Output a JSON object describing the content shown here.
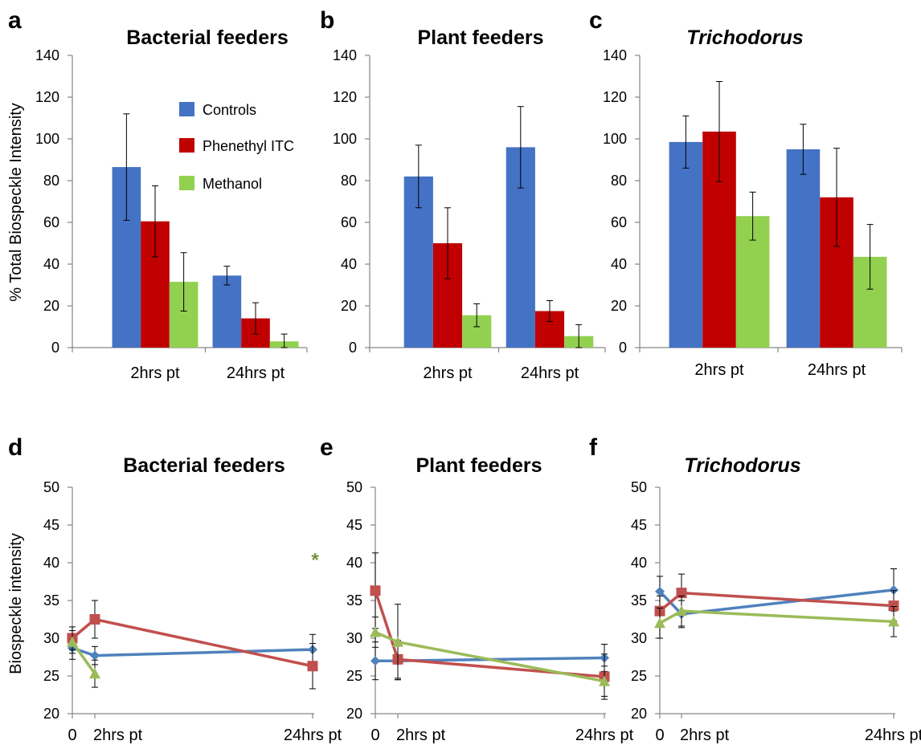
{
  "colors": {
    "controls": "#4472C4",
    "phenethyl": "#C00000",
    "methanol": "#92D050",
    "line_controls": "#4F81BD",
    "line_phenethyl": "#C0504D",
    "line_methanol": "#9BBB59",
    "asterisk": "#77933C"
  },
  "legend": [
    "Controls",
    "Phenethyl ITC",
    "Methanol"
  ],
  "y_title_top": "% Total Biospeckle Intensity",
  "y_title_bottom": "Biospeckle intensity",
  "chart_data": [
    {
      "panel": "a",
      "type": "bar",
      "title": "Bacterial feeders",
      "title_italic": false,
      "categories": [
        "2hrs pt",
        "24hrs pt"
      ],
      "ylim": [
        0,
        140
      ],
      "yticks": [
        0,
        20,
        40,
        60,
        80,
        100,
        120,
        140
      ],
      "series": [
        {
          "name": "Controls",
          "values": [
            86.5,
            34.5
          ],
          "errors": [
            25.5,
            4.5
          ]
        },
        {
          "name": "Phenethyl ITC",
          "values": [
            60.5,
            14
          ],
          "errors": [
            17,
            7.5
          ]
        },
        {
          "name": "Methanol",
          "values": [
            31.5,
            3
          ],
          "errors": [
            14,
            3.5
          ]
        }
      ]
    },
    {
      "panel": "b",
      "type": "bar",
      "title": "Plant feeders",
      "title_italic": false,
      "categories": [
        "2hrs pt",
        "24hrs pt"
      ],
      "ylim": [
        0,
        140
      ],
      "yticks": [
        0,
        20,
        40,
        60,
        80,
        100,
        120,
        140
      ],
      "series": [
        {
          "name": "Controls",
          "values": [
            82,
            96
          ],
          "errors": [
            15,
            19.5
          ]
        },
        {
          "name": "Phenethyl ITC",
          "values": [
            50,
            17.5
          ],
          "errors": [
            17,
            5
          ]
        },
        {
          "name": "Methanol",
          "values": [
            15.5,
            5.5
          ],
          "errors": [
            5.5,
            5.5
          ]
        }
      ]
    },
    {
      "panel": "c",
      "type": "bar",
      "title": "Trichodorus",
      "title_italic": true,
      "categories": [
        "2hrs pt",
        "24hrs pt"
      ],
      "ylim": [
        0,
        140
      ],
      "yticks": [
        0,
        20,
        40,
        60,
        80,
        100,
        120,
        140
      ],
      "series": [
        {
          "name": "Controls",
          "values": [
            98.5,
            95
          ],
          "errors": [
            12.5,
            12
          ]
        },
        {
          "name": "Phenethyl ITC",
          "values": [
            103.5,
            72
          ],
          "errors": [
            24,
            23.5
          ]
        },
        {
          "name": "Methanol",
          "values": [
            63,
            43.5
          ],
          "errors": [
            11.5,
            15.5
          ]
        }
      ]
    },
    {
      "panel": "d",
      "type": "line",
      "title": "Bacterial feeders",
      "title_italic": false,
      "x_tick_labels": [
        "0",
        "2hrs pt",
        "24hrs pt"
      ],
      "x": [
        0,
        2,
        24
      ],
      "xlim": [
        0,
        24
      ],
      "ylim": [
        20,
        50
      ],
      "yticks": [
        20,
        25,
        30,
        35,
        40,
        45,
        50
      ],
      "annotation": "*",
      "annotation_y": 41,
      "series": [
        {
          "name": "Controls",
          "marker": "diamond",
          "x": [
            0,
            2,
            24
          ],
          "values": [
            28.7,
            27.7,
            28.5
          ],
          "errors": [
            1.5,
            1.2,
            2
          ]
        },
        {
          "name": "Phenethyl ITC",
          "marker": "square",
          "x": [
            0,
            2,
            24
          ],
          "values": [
            30,
            32.5,
            26.3
          ],
          "errors": [
            1.5,
            2.5,
            3
          ]
        },
        {
          "name": "Methanol",
          "marker": "triangle",
          "x": [
            0,
            2
          ],
          "values": [
            29.5,
            25.3
          ],
          "errors": [
            1.5,
            1.8
          ]
        }
      ]
    },
    {
      "panel": "e",
      "type": "line",
      "title": "Plant feeders",
      "title_italic": false,
      "x_tick_labels": [
        "0",
        "2hrs pt",
        "24hrs pt"
      ],
      "x": [
        0,
        2,
        24
      ],
      "xlim": [
        0,
        24
      ],
      "ylim": [
        20,
        50
      ],
      "yticks": [
        20,
        25,
        30,
        35,
        40,
        45,
        50
      ],
      "series": [
        {
          "name": "Controls",
          "marker": "diamond",
          "x": [
            0,
            2,
            24
          ],
          "values": [
            27,
            27,
            27.4
          ],
          "errors": [
            2.5,
            2.5,
            1.8
          ]
        },
        {
          "name": "Phenethyl ITC",
          "marker": "square",
          "x": [
            0,
            2,
            24
          ],
          "values": [
            36.3,
            27.2,
            24.9
          ],
          "errors": [
            5,
            2.5,
            3
          ]
        },
        {
          "name": "Methanol",
          "marker": "triangle",
          "x": [
            0,
            2,
            24
          ],
          "values": [
            30.8,
            29.5,
            24.3
          ],
          "errors": [
            2,
            5,
            2
          ]
        }
      ]
    },
    {
      "panel": "f",
      "type": "line",
      "title": "Trichodorus",
      "title_italic": true,
      "x_tick_labels": [
        "0",
        "2hrs pt",
        "24hrs pt"
      ],
      "x": [
        0,
        2,
        24
      ],
      "xlim": [
        0,
        24
      ],
      "ylim": [
        20,
        50
      ],
      "yticks": [
        20,
        25,
        30,
        35,
        40,
        45,
        50
      ],
      "series": [
        {
          "name": "Controls",
          "marker": "diamond",
          "x": [
            0,
            2,
            24
          ],
          "values": [
            36.2,
            33.2,
            36.4
          ],
          "errors": [
            2,
            1.8,
            2.8
          ]
        },
        {
          "name": "Phenethyl ITC",
          "marker": "square",
          "x": [
            0,
            2,
            24
          ],
          "values": [
            33.6,
            36,
            34.3
          ],
          "errors": [
            2,
            2.5,
            2
          ]
        },
        {
          "name": "Methanol",
          "marker": "triangle",
          "x": [
            0,
            2,
            24
          ],
          "values": [
            32,
            33.6,
            32.2
          ],
          "errors": [
            2,
            2,
            2
          ]
        }
      ]
    }
  ]
}
